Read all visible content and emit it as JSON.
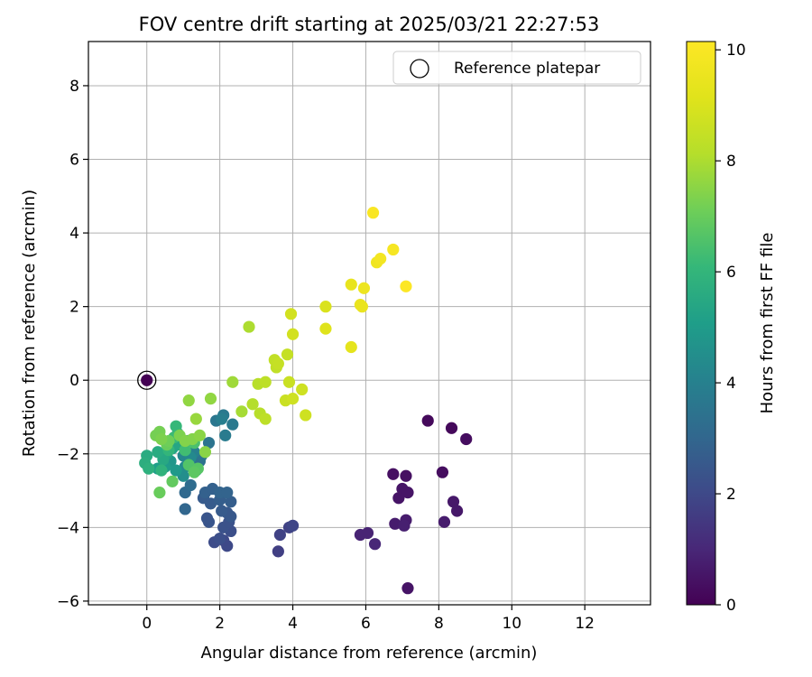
{
  "chart_data": {
    "type": "scatter",
    "title": "FOV centre drift starting at 2025/03/21 22:27:53",
    "xlabel": "Angular distance from reference (arcmin)",
    "ylabel": "Rotation from reference (arcmin)",
    "xlim": [
      -1.6,
      13.8
    ],
    "ylim": [
      -6.1,
      9.2
    ],
    "x_ticks": [
      0,
      2,
      4,
      6,
      8,
      10,
      12
    ],
    "y_ticks": [
      -6,
      -4,
      -2,
      0,
      2,
      4,
      6,
      8
    ],
    "x_tick_labels": [
      "0",
      "2",
      "4",
      "6",
      "8",
      "10",
      "12"
    ],
    "y_tick_labels": [
      "−6",
      "−4",
      "−2",
      "0",
      "2",
      "4",
      "6",
      "8"
    ],
    "grid": true,
    "legend": {
      "position": "top-right",
      "entries": [
        {
          "label": "Reference platepar",
          "marker": "open-circle"
        }
      ]
    },
    "reference_point": {
      "x": 0,
      "y": 0
    },
    "colorbar": {
      "label": "Hours from first FF file",
      "range": [
        0,
        10.15
      ],
      "ticks": [
        0,
        2,
        4,
        6,
        8,
        10
      ],
      "tick_labels": [
        "0",
        "2",
        "4",
        "6",
        "8",
        "10"
      ],
      "colormap": "viridis"
    },
    "series": [
      {
        "points": [
          {
            "x": 0,
            "y": 0,
            "t": 0.0
          },
          {
            "x": 7.7,
            "y": -1.1,
            "t": 0.2
          },
          {
            "x": 8.35,
            "y": -1.3,
            "t": 0.2
          },
          {
            "x": 8.75,
            "y": -1.6,
            "t": 0.3
          },
          {
            "x": 8.1,
            "y": -2.5,
            "t": 0.3
          },
          {
            "x": 6.75,
            "y": -2.55,
            "t": 0.4
          },
          {
            "x": 7.1,
            "y": -2.6,
            "t": 0.4
          },
          {
            "x": 7.0,
            "y": -2.95,
            "t": 0.5
          },
          {
            "x": 7.15,
            "y": -3.05,
            "t": 0.5
          },
          {
            "x": 6.9,
            "y": -3.2,
            "t": 0.5
          },
          {
            "x": 8.4,
            "y": -3.3,
            "t": 0.6
          },
          {
            "x": 8.5,
            "y": -3.55,
            "t": 0.6
          },
          {
            "x": 8.15,
            "y": -3.85,
            "t": 0.7
          },
          {
            "x": 7.1,
            "y": -3.8,
            "t": 0.7
          },
          {
            "x": 6.8,
            "y": -3.9,
            "t": 0.7
          },
          {
            "x": 7.05,
            "y": -3.95,
            "t": 0.8
          },
          {
            "x": 5.85,
            "y": -4.2,
            "t": 0.9
          },
          {
            "x": 6.05,
            "y": -4.15,
            "t": 0.9
          },
          {
            "x": 6.25,
            "y": -4.45,
            "t": 1.0
          },
          {
            "x": 7.15,
            "y": -5.65,
            "t": 0.5
          },
          {
            "x": 3.6,
            "y": -4.65,
            "t": 1.7
          },
          {
            "x": 3.65,
            "y": -4.2,
            "t": 1.8
          },
          {
            "x": 3.9,
            "y": -4.0,
            "t": 1.8
          },
          {
            "x": 4.0,
            "y": -3.95,
            "t": 1.9
          },
          {
            "x": 2.2,
            "y": -4.5,
            "t": 2.0
          },
          {
            "x": 2.1,
            "y": -4.35,
            "t": 2.0
          },
          {
            "x": 1.85,
            "y": -4.4,
            "t": 2.1
          },
          {
            "x": 2.0,
            "y": -4.3,
            "t": 2.2
          },
          {
            "x": 2.3,
            "y": -4.1,
            "t": 2.2
          },
          {
            "x": 2.1,
            "y": -4.0,
            "t": 2.3
          },
          {
            "x": 2.25,
            "y": -3.85,
            "t": 2.3
          },
          {
            "x": 1.7,
            "y": -3.85,
            "t": 2.4
          },
          {
            "x": 1.65,
            "y": -3.75,
            "t": 2.4
          },
          {
            "x": 2.3,
            "y": -3.7,
            "t": 2.5
          },
          {
            "x": 2.2,
            "y": -3.6,
            "t": 2.5
          },
          {
            "x": 2.05,
            "y": -3.55,
            "t": 2.6
          },
          {
            "x": 1.55,
            "y": -3.2,
            "t": 2.6
          },
          {
            "x": 1.75,
            "y": -3.35,
            "t": 2.6
          },
          {
            "x": 2.0,
            "y": -3.25,
            "t": 2.7
          },
          {
            "x": 2.3,
            "y": -3.3,
            "t": 2.7
          },
          {
            "x": 1.6,
            "y": -3.05,
            "t": 2.8
          },
          {
            "x": 1.8,
            "y": -2.95,
            "t": 2.8
          },
          {
            "x": 2.0,
            "y": -3.05,
            "t": 2.9
          },
          {
            "x": 2.2,
            "y": -3.05,
            "t": 2.9
          },
          {
            "x": 1.05,
            "y": -3.5,
            "t": 3.0
          },
          {
            "x": 1.05,
            "y": -3.05,
            "t": 3.1
          },
          {
            "x": 1.2,
            "y": -2.85,
            "t": 3.2
          },
          {
            "x": 1.45,
            "y": -2.2,
            "t": 3.4
          },
          {
            "x": 1.5,
            "y": -2.05,
            "t": 3.5
          },
          {
            "x": 1.7,
            "y": -1.7,
            "t": 3.5
          },
          {
            "x": 1.9,
            "y": -1.1,
            "t": 3.6
          },
          {
            "x": 2.1,
            "y": -0.95,
            "t": 3.7
          },
          {
            "x": 2.35,
            "y": -1.2,
            "t": 3.7
          },
          {
            "x": 2.15,
            "y": -1.5,
            "t": 3.8
          },
          {
            "x": 2.05,
            "y": -1.05,
            "t": 3.9
          },
          {
            "x": 1.3,
            "y": -1.95,
            "t": 4.0
          },
          {
            "x": 1.0,
            "y": -2.05,
            "t": 4.2
          },
          {
            "x": 1.2,
            "y": -2.1,
            "t": 4.3
          },
          {
            "x": 1.05,
            "y": -2.35,
            "t": 4.4
          },
          {
            "x": 1.0,
            "y": -2.6,
            "t": 4.5
          },
          {
            "x": 1.35,
            "y": -2.45,
            "t": 4.5
          },
          {
            "x": 0.85,
            "y": -1.45,
            "t": 4.6
          },
          {
            "x": 1.1,
            "y": -1.65,
            "t": 4.7
          },
          {
            "x": 0.65,
            "y": -2.2,
            "t": 4.8
          },
          {
            "x": 0.8,
            "y": -2.45,
            "t": 4.9
          },
          {
            "x": 0.5,
            "y": -2.35,
            "t": 5.0
          },
          {
            "x": 0.3,
            "y": -2.4,
            "t": 5.1
          },
          {
            "x": 0.55,
            "y": -2.0,
            "t": 5.2
          },
          {
            "x": 0.7,
            "y": -1.85,
            "t": 5.3
          },
          {
            "x": 0.85,
            "y": -1.75,
            "t": 5.4
          },
          {
            "x": 0.45,
            "y": -2.15,
            "t": 5.5
          },
          {
            "x": 0.3,
            "y": -1.95,
            "t": 5.6
          },
          {
            "x": 0.0,
            "y": -2.05,
            "t": 5.6
          },
          {
            "x": -0.05,
            "y": -2.25,
            "t": 5.7
          },
          {
            "x": 0.05,
            "y": -2.4,
            "t": 5.8
          },
          {
            "x": 0.4,
            "y": -2.45,
            "t": 5.9
          },
          {
            "x": 0.6,
            "y": -1.9,
            "t": 6.0
          },
          {
            "x": 0.8,
            "y": -1.25,
            "t": 6.1
          },
          {
            "x": 0.75,
            "y": -1.55,
            "t": 6.2
          },
          {
            "x": 1.05,
            "y": -1.9,
            "t": 6.3
          },
          {
            "x": 1.3,
            "y": -1.7,
            "t": 6.5
          },
          {
            "x": 1.15,
            "y": -2.3,
            "t": 6.6
          },
          {
            "x": 1.4,
            "y": -2.4,
            "t": 6.7
          },
          {
            "x": 1.3,
            "y": -2.5,
            "t": 6.8
          },
          {
            "x": 0.7,
            "y": -2.75,
            "t": 6.9
          },
          {
            "x": 0.35,
            "y": -3.05,
            "t": 7.0
          },
          {
            "x": 0.55,
            "y": -1.75,
            "t": 7.0
          },
          {
            "x": 0.6,
            "y": -1.65,
            "t": 7.1
          },
          {
            "x": 0.35,
            "y": -1.4,
            "t": 7.2
          },
          {
            "x": 0.25,
            "y": -1.5,
            "t": 7.2
          },
          {
            "x": 0.4,
            "y": -1.6,
            "t": 7.3
          },
          {
            "x": 0.9,
            "y": -1.5,
            "t": 7.3
          },
          {
            "x": 1.05,
            "y": -1.65,
            "t": 7.4
          },
          {
            "x": 1.25,
            "y": -1.6,
            "t": 7.4
          },
          {
            "x": 1.45,
            "y": -1.5,
            "t": 7.5
          },
          {
            "x": 1.6,
            "y": -1.95,
            "t": 7.5
          },
          {
            "x": 1.75,
            "y": -0.5,
            "t": 7.6
          },
          {
            "x": 1.15,
            "y": -0.55,
            "t": 7.6
          },
          {
            "x": 1.35,
            "y": -1.05,
            "t": 7.7
          },
          {
            "x": 2.35,
            "y": -0.05,
            "t": 7.8
          },
          {
            "x": 2.6,
            "y": -0.85,
            "t": 7.9
          },
          {
            "x": 2.8,
            "y": 1.45,
            "t": 8.0
          },
          {
            "x": 2.9,
            "y": -0.65,
            "t": 8.1
          },
          {
            "x": 3.05,
            "y": -0.1,
            "t": 8.2
          },
          {
            "x": 3.1,
            "y": -0.9,
            "t": 8.2
          },
          {
            "x": 3.25,
            "y": -1.05,
            "t": 8.3
          },
          {
            "x": 3.25,
            "y": -0.05,
            "t": 8.3
          },
          {
            "x": 3.5,
            "y": 0.55,
            "t": 8.4
          },
          {
            "x": 3.55,
            "y": 0.35,
            "t": 8.4
          },
          {
            "x": 3.6,
            "y": 0.45,
            "t": 8.5
          },
          {
            "x": 3.85,
            "y": 0.7,
            "t": 8.5
          },
          {
            "x": 3.8,
            "y": -0.55,
            "t": 8.6
          },
          {
            "x": 3.9,
            "y": -0.05,
            "t": 8.6
          },
          {
            "x": 4.0,
            "y": -0.5,
            "t": 8.7
          },
          {
            "x": 4.25,
            "y": -0.25,
            "t": 8.7
          },
          {
            "x": 4.35,
            "y": -0.95,
            "t": 8.7
          },
          {
            "x": 3.95,
            "y": 1.8,
            "t": 8.8
          },
          {
            "x": 4.0,
            "y": 1.25,
            "t": 8.8
          },
          {
            "x": 4.9,
            "y": 2.0,
            "t": 9.0
          },
          {
            "x": 4.9,
            "y": 1.4,
            "t": 9.1
          },
          {
            "x": 5.6,
            "y": 0.9,
            "t": 9.3
          },
          {
            "x": 5.6,
            "y": 2.6,
            "t": 9.4
          },
          {
            "x": 5.85,
            "y": 2.05,
            "t": 9.5
          },
          {
            "x": 5.9,
            "y": 2.0,
            "t": 9.5
          },
          {
            "x": 5.95,
            "y": 2.5,
            "t": 9.6
          },
          {
            "x": 6.3,
            "y": 3.2,
            "t": 9.7
          },
          {
            "x": 6.4,
            "y": 3.3,
            "t": 9.8
          },
          {
            "x": 6.75,
            "y": 3.55,
            "t": 9.9
          },
          {
            "x": 6.2,
            "y": 4.55,
            "t": 10.0
          },
          {
            "x": 7.1,
            "y": 2.55,
            "t": 10.1
          }
        ]
      }
    ]
  }
}
